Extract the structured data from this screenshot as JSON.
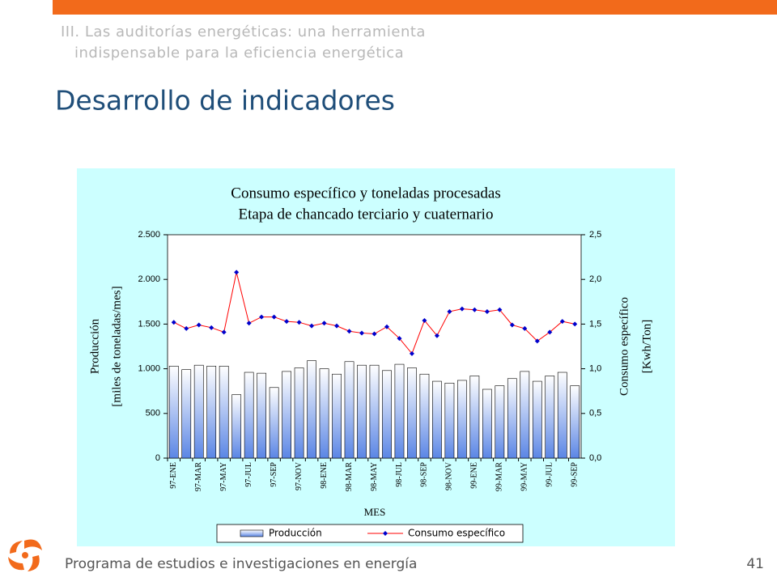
{
  "slide": {
    "header": [
      "III. Las auditorías energéticas: una herramienta",
      "indispensable para la eficiencia energética"
    ],
    "title": "Desarrollo de indicadores",
    "footer": "Programa de estudios e investigaciones en energía",
    "page": "41"
  },
  "chart_data": {
    "type": "combo",
    "title": [
      "Consumo específico y toneladas procesadas",
      "Etapa de chancado terciario y cuaternario"
    ],
    "ylabel": [
      "Producción",
      "[miles de toneladas/mes]"
    ],
    "y2label": [
      "Consumo específico",
      "[Kwh/Ton]"
    ],
    "xlabel": "MES",
    "categories": [
      "97-ENE",
      null,
      "97-MAR",
      null,
      "97-MAY",
      null,
      "97-JUL",
      null,
      "97-SEP",
      null,
      "97-NOV",
      null,
      "98-ENE",
      null,
      "98-MAR",
      null,
      "98-MAY",
      null,
      "98-JUL",
      null,
      "98-SEP",
      null,
      "98-NOV",
      null,
      "99-ENE",
      null,
      "99-MAR",
      null,
      "99-MAY",
      null,
      "99-JUL",
      null,
      "99-SEP"
    ],
    "series": [
      {
        "name": "Producción",
        "type": "bar",
        "color": "#6f94e8",
        "values": [
          1030,
          990,
          1040,
          1030,
          1030,
          710,
          960,
          950,
          790,
          970,
          1010,
          1090,
          1000,
          940,
          1080,
          1040,
          1040,
          980,
          1050,
          1010,
          940,
          860,
          840,
          870,
          920,
          770,
          810,
          890,
          970,
          860,
          920,
          960,
          810
        ]
      },
      {
        "name": "Consumo específico",
        "type": "line",
        "axis": "y2",
        "color": "#ff0000",
        "marker_color": "#0000cc",
        "values": [
          1.52,
          1.45,
          1.49,
          1.46,
          1.41,
          2.08,
          1.51,
          1.58,
          1.58,
          1.53,
          1.52,
          1.48,
          1.51,
          1.48,
          1.42,
          1.4,
          1.39,
          1.47,
          1.34,
          1.17,
          1.54,
          1.37,
          1.64,
          1.67,
          1.66,
          1.64,
          1.66,
          1.49,
          1.45,
          1.31,
          1.41,
          1.53,
          1.5
        ]
      }
    ],
    "ylim": [
      0,
      2500
    ],
    "yticks": [
      0,
      500,
      {
        "value": 1000,
        "label": "1.000"
      },
      {
        "value": 1500,
        "label": "1.500"
      },
      {
        "value": 2000,
        "label": "2.000"
      },
      {
        "value": 2500,
        "label": "2.500"
      }
    ],
    "y2lim": [
      0,
      2.5
    ],
    "y2ticks": [
      {
        "value": 0,
        "label": "0,0"
      },
      {
        "value": 0.5,
        "label": "0,5"
      },
      {
        "value": 1,
        "label": "1,0"
      },
      {
        "value": 1.5,
        "label": "1,5"
      },
      {
        "value": 2,
        "label": "2,0"
      },
      {
        "value": 2.5,
        "label": "2,5"
      }
    ],
    "legend": "bottom"
  }
}
